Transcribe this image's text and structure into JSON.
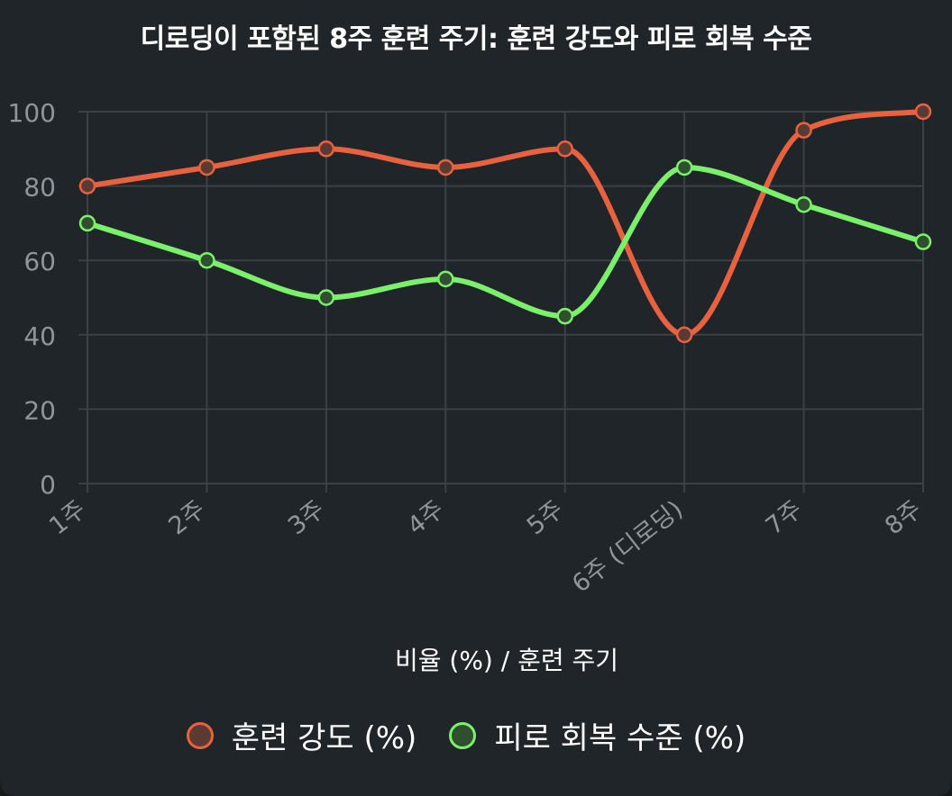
{
  "chart_data": {
    "type": "line",
    "title": "디로딩이 포함된 8주 훈련 주기: 훈련 강도와 피로 회복 수준",
    "xlabel": "비율 (%) / 훈련 주기",
    "ylabel": "",
    "categories": [
      "1주",
      "2주",
      "3주",
      "4주",
      "5주",
      "6주 (디로딩)",
      "7주",
      "8주"
    ],
    "ylim": [
      0,
      100
    ],
    "yticks": [
      0,
      20,
      40,
      60,
      80,
      100
    ],
    "grid": true,
    "legend_position": "bottom",
    "series": [
      {
        "name": "훈련 강도 (%)",
        "values": [
          80,
          85,
          90,
          85,
          90,
          40,
          95,
          100
        ],
        "color": "#e8623f",
        "fill": "#5a3a33"
      },
      {
        "name": "피로 회복 수준 (%)",
        "values": [
          70,
          60,
          50,
          55,
          45,
          85,
          75,
          65
        ],
        "color": "#7bf06b",
        "fill": "#2f4f2f"
      }
    ]
  }
}
